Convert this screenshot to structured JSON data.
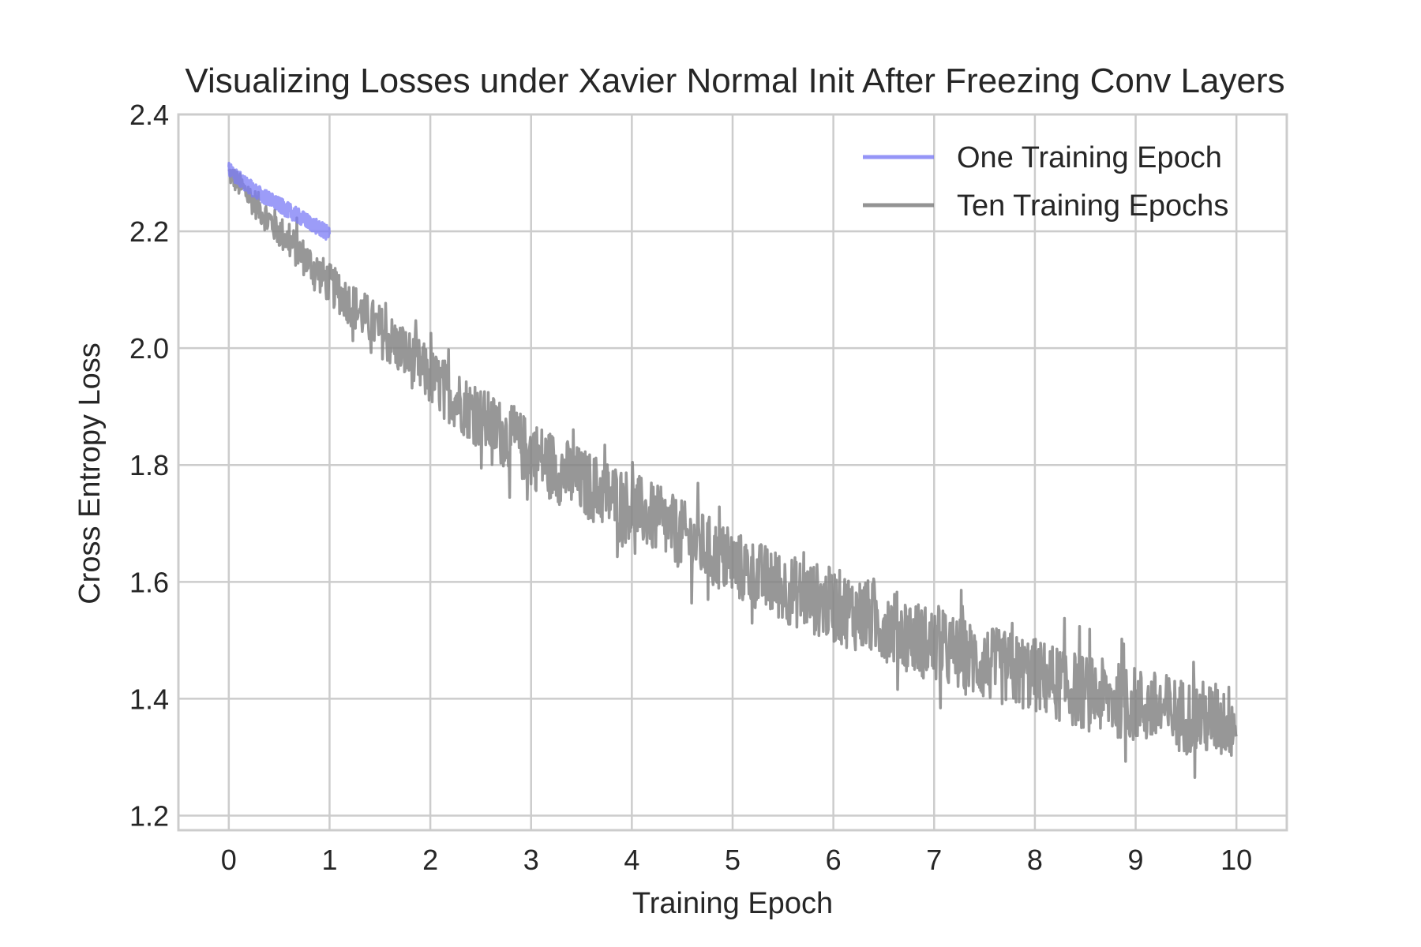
{
  "chart_data": {
    "type": "line",
    "title": "Visualizing Losses under Xavier Normal Init After Freezing Conv Layers",
    "xlabel": "Training Epoch",
    "ylabel": "Cross Entropy Loss",
    "xlim": [
      -0.5,
      10.5
    ],
    "ylim": [
      1.175,
      2.4
    ],
    "xticks": [
      0,
      1,
      2,
      3,
      4,
      5,
      6,
      7,
      8,
      9,
      10
    ],
    "xtick_labels": [
      "0",
      "1",
      "2",
      "3",
      "4",
      "5",
      "6",
      "7",
      "8",
      "9",
      "10"
    ],
    "yticks": [
      1.2,
      1.4,
      1.6,
      1.8,
      2.0,
      2.2,
      2.4
    ],
    "ytick_labels": [
      "1.2",
      "1.4",
      "1.6",
      "1.8",
      "2.0",
      "2.2",
      "2.4"
    ],
    "grid": true,
    "legend_position": "top-right",
    "series": [
      {
        "name": "One Training Epoch",
        "color": "#7b7bf5",
        "x": [
          0,
          0.1,
          0.2,
          0.3,
          0.4,
          0.5,
          0.6,
          0.7,
          0.8,
          0.9,
          1.0
        ],
        "y": [
          2.305,
          2.29,
          2.277,
          2.265,
          2.255,
          2.245,
          2.235,
          2.225,
          2.215,
          2.205,
          2.195
        ],
        "band": 0.013
      },
      {
        "name": "Ten Training Epochs",
        "color": "#808080",
        "x": [
          0,
          0.5,
          1,
          1.5,
          2,
          2.5,
          3,
          3.5,
          4,
          4.5,
          5,
          5.5,
          6,
          6.5,
          7,
          7.5,
          8,
          8.5,
          9,
          9.5,
          10
        ],
        "y": [
          2.3,
          2.2,
          2.11,
          2.03,
          1.95,
          1.88,
          1.82,
          1.77,
          1.73,
          1.68,
          1.63,
          1.59,
          1.56,
          1.53,
          1.49,
          1.46,
          1.44,
          1.41,
          1.39,
          1.37,
          1.36
        ],
        "noise": [
          0.02,
          0.03,
          0.035,
          0.045,
          0.05,
          0.055,
          0.06,
          0.06,
          0.06,
          0.06,
          0.06,
          0.06,
          0.065,
          0.065,
          0.065,
          0.065,
          0.065,
          0.065,
          0.065,
          0.065,
          0.065
        ]
      }
    ]
  }
}
